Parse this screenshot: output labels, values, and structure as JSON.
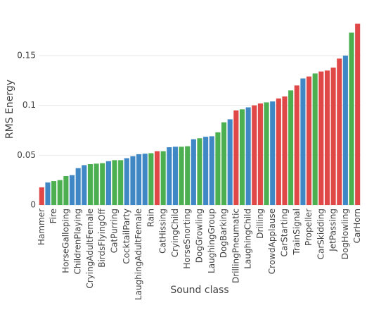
{
  "chart_data": {
    "type": "bar",
    "x_label": "Sound class",
    "y_label": "RMS Energy",
    "categories": [
      "Hammer",
      null,
      "Fire",
      null,
      "HorseGalloping",
      null,
      "ChildrenPlaying",
      null,
      "CryingAdultFemale",
      null,
      "BirdsFlyingOff",
      null,
      "CatPurring",
      null,
      "CocktailParty",
      null,
      "LaughingAdultFemale",
      null,
      "Rain",
      null,
      "CatHissing",
      null,
      "CryingChild",
      null,
      "HorseSnorting",
      null,
      "DogGrowling",
      null,
      "LaughingGroup",
      null,
      "DogBarking",
      null,
      "DrillingPneumatic",
      null,
      "LaughingChild",
      null,
      "Drilling",
      null,
      "CrowdApplause",
      null,
      "CarStarting",
      null,
      "TrainSignal",
      null,
      "Propeller",
      null,
      "CarSkidding",
      null,
      "JetPassing",
      null,
      "DogHowling",
      null,
      "CarHorn"
    ],
    "values": [
      0.0177,
      0.0226,
      0.024,
      0.025,
      0.029,
      0.03,
      0.037,
      0.04,
      0.041,
      0.0415,
      0.042,
      0.044,
      0.045,
      0.045,
      0.047,
      0.049,
      0.051,
      0.0515,
      0.052,
      0.054,
      0.054,
      0.058,
      0.0585,
      0.0585,
      0.059,
      0.066,
      0.067,
      0.0685,
      0.069,
      0.073,
      0.083,
      0.086,
      0.095,
      0.096,
      0.098,
      0.1,
      0.102,
      0.103,
      0.104,
      0.107,
      0.109,
      0.115,
      0.12,
      0.127,
      0.129,
      0.132,
      0.134,
      0.135,
      0.138,
      0.147,
      0.15,
      0.173,
      0.182
    ],
    "colors": [
      "#e04848",
      "#3f88c5",
      "#4caf50",
      "#4caf50",
      "#4caf50",
      "#3f88c5",
      "#3f88c5",
      "#3f88c5",
      "#4caf50",
      "#4caf50",
      "#4caf50",
      "#3f88c5",
      "#4caf50",
      "#4caf50",
      "#3f88c5",
      "#3f88c5",
      "#3f88c5",
      "#3f88c5",
      "#4caf50",
      "#e04848",
      "#4caf50",
      "#3f88c5",
      "#3f88c5",
      "#4caf50",
      "#4caf50",
      "#3f88c5",
      "#4caf50",
      "#3f88c5",
      "#3f88c5",
      "#4caf50",
      "#4caf50",
      "#3f88c5",
      "#e04848",
      "#4caf50",
      "#3f88c5",
      "#e04848",
      "#e04848",
      "#4caf50",
      "#3f88c5",
      "#e04848",
      "#e04848",
      "#4caf50",
      "#e04848",
      "#3f88c5",
      "#e04848",
      "#4caf50",
      "#e04848",
      "#e04848",
      "#e04848",
      "#e04848",
      "#3f88c5",
      "#4caf50",
      "#e04848"
    ],
    "ylim": [
      0,
      0.186
    ],
    "yticks": [
      0,
      0.05,
      0.1,
      0.15
    ],
    "grid": true
  }
}
